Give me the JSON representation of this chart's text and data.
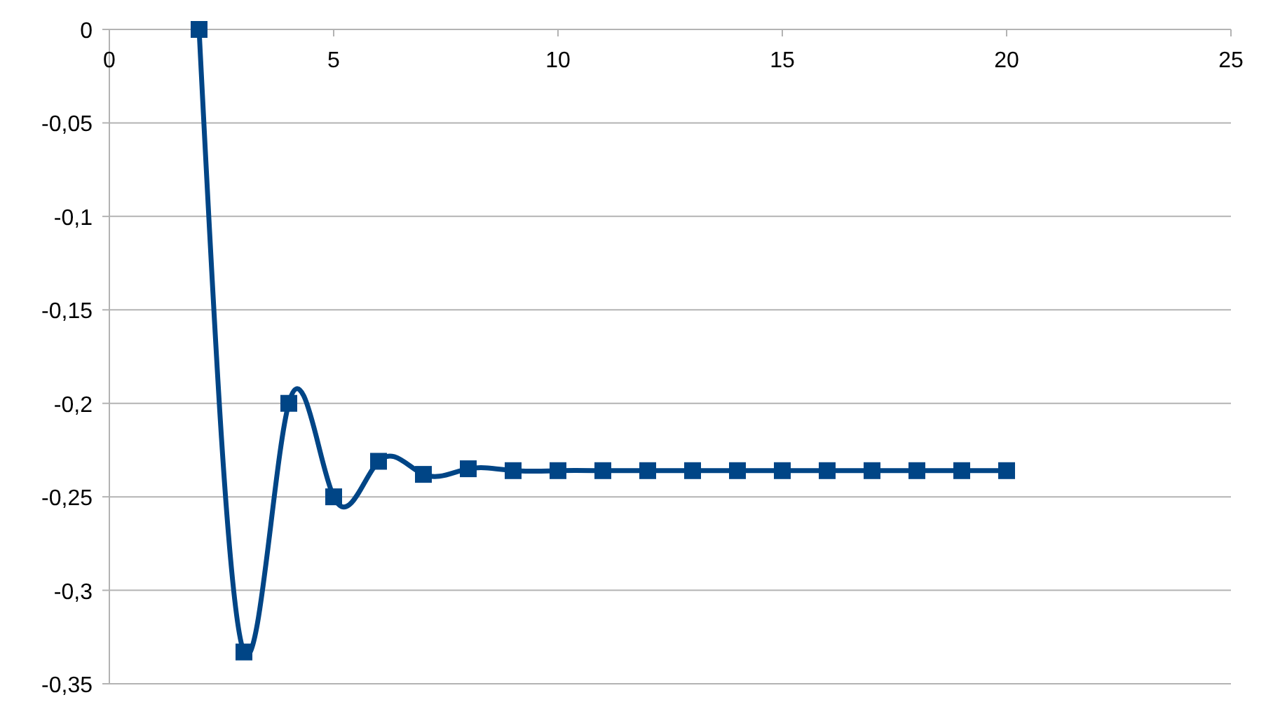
{
  "chart_data": {
    "type": "line",
    "x": [
      2,
      3,
      4,
      5,
      6,
      7,
      8,
      9,
      10,
      11,
      12,
      13,
      14,
      15,
      16,
      17,
      18,
      19,
      20
    ],
    "series": [
      {
        "color": "#004586",
        "values": [
          0,
          -0.333,
          -0.2,
          -0.25,
          -0.231,
          -0.238,
          -0.235,
          -0.236,
          -0.236,
          -0.236,
          -0.236,
          -0.236,
          -0.236,
          -0.236,
          -0.236,
          -0.236,
          -0.236,
          -0.236,
          -0.236
        ]
      }
    ],
    "xlim": [
      0,
      25
    ],
    "xticks": [
      0,
      5,
      10,
      15,
      20,
      25
    ],
    "ylim": [
      -0.35,
      0
    ],
    "yticks": [
      {
        "value": 0,
        "label": "0"
      },
      {
        "value": -0.05,
        "label": "-0,05"
      },
      {
        "value": -0.1,
        "label": "-0,1"
      },
      {
        "value": -0.15,
        "label": "-0,15"
      },
      {
        "value": -0.2,
        "label": "-0,2"
      },
      {
        "value": -0.25,
        "label": "-0,25"
      },
      {
        "value": -0.3,
        "label": "-0,3"
      },
      {
        "value": -0.35,
        "label": "-0,35"
      }
    ],
    "grid": "y",
    "marker": "square",
    "line_style": "solid"
  }
}
